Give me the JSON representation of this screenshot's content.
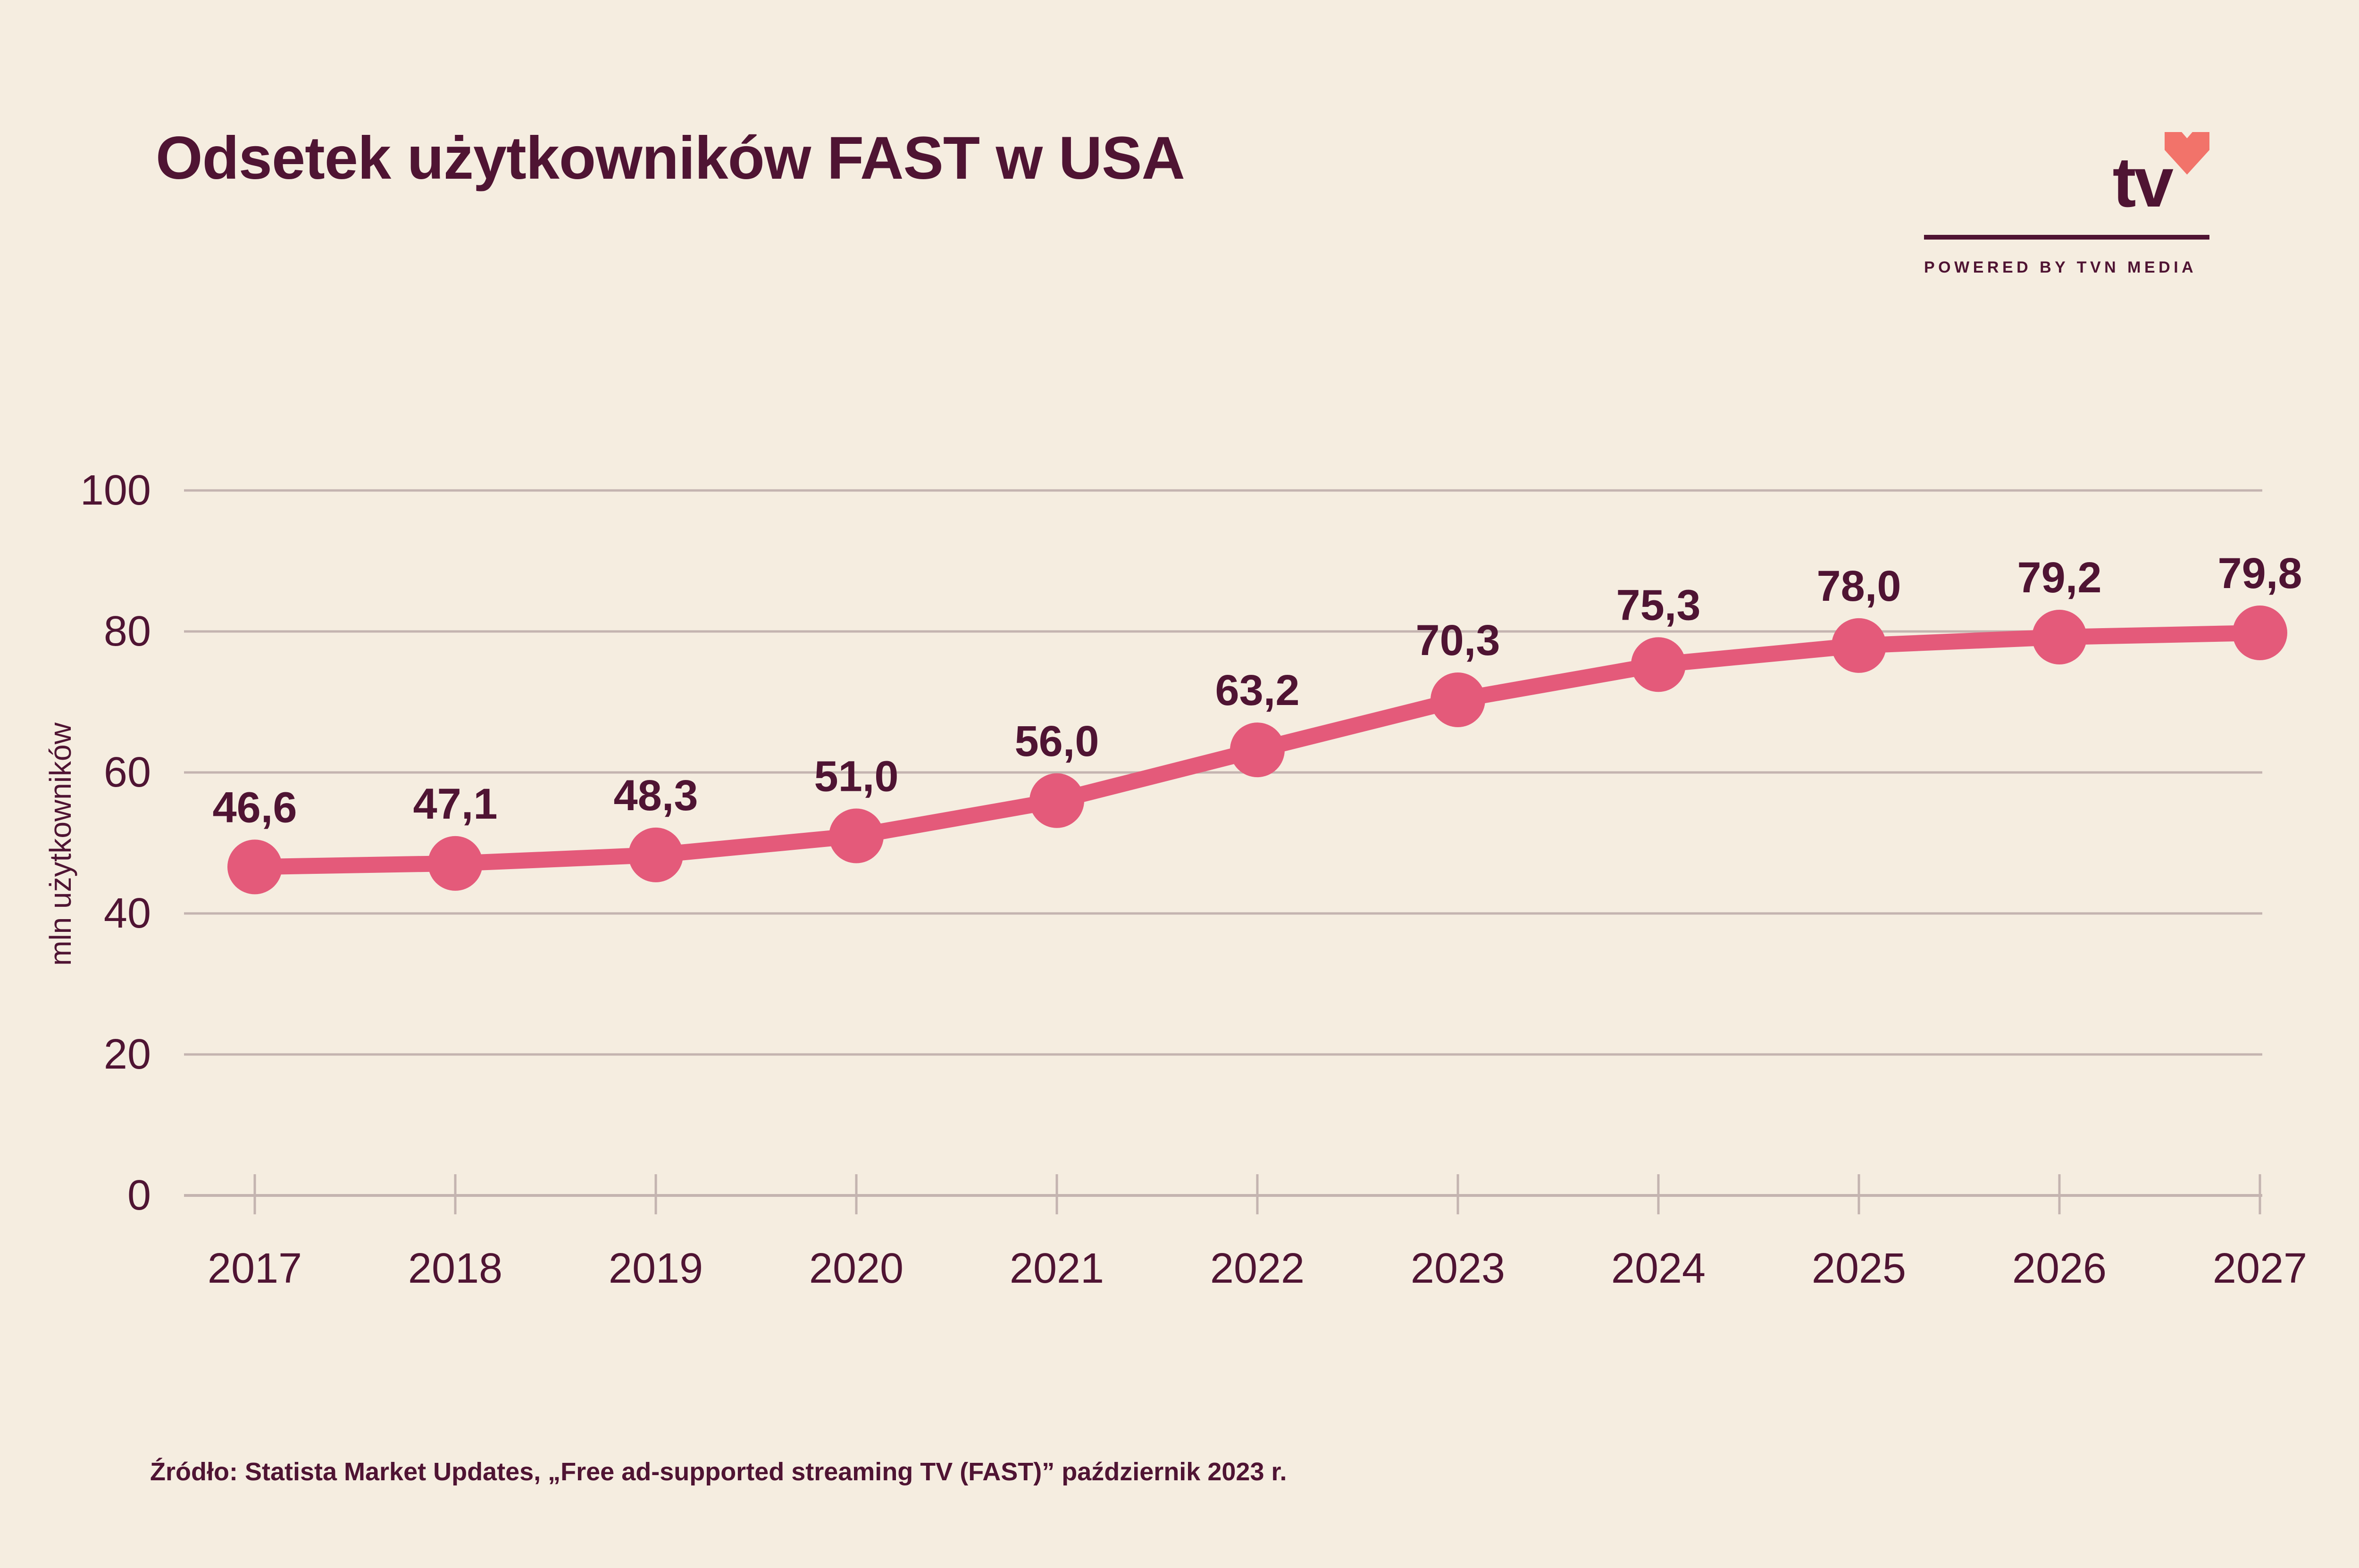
{
  "title": "Odsetek użytkowników FAST w USA",
  "logo": {
    "text": "tv",
    "tagline": "POWERED BY TVN MEDIA",
    "heart_color": "#f2736a",
    "heart_icon": "heart-icon"
  },
  "source": "Źródło: Statista Market Updates, „Free ad-supported streaming TV (FAST)” październik 2023 r.",
  "colors": {
    "background": "#f5ede0",
    "text": "#4f1433",
    "line": "#e45a7a",
    "grid": "#c4b4b0"
  },
  "chart_data": {
    "type": "line",
    "title": "Odsetek użytkowników FAST w USA",
    "xlabel": "",
    "ylabel": "mln użytkowników",
    "x": [
      "2017",
      "2018",
      "2019",
      "2020",
      "2021",
      "2022",
      "2023",
      "2024",
      "2025",
      "2026",
      "2027"
    ],
    "series": [
      {
        "values": [
          46.6,
          47.1,
          48.3,
          51.0,
          56.0,
          63.2,
          70.3,
          75.3,
          78.0,
          79.2,
          79.8
        ],
        "data_labels": [
          "46,6",
          "47,1",
          "48,3",
          "51,0",
          "56,0",
          "63,2",
          "70,3",
          "75,3",
          "78,0",
          "79,2",
          "79,8"
        ]
      }
    ],
    "ylim": [
      0,
      100
    ],
    "yticks": [
      "0",
      "20",
      "40",
      "60",
      "80",
      "100"
    ],
    "grid": true,
    "legend": "none"
  }
}
